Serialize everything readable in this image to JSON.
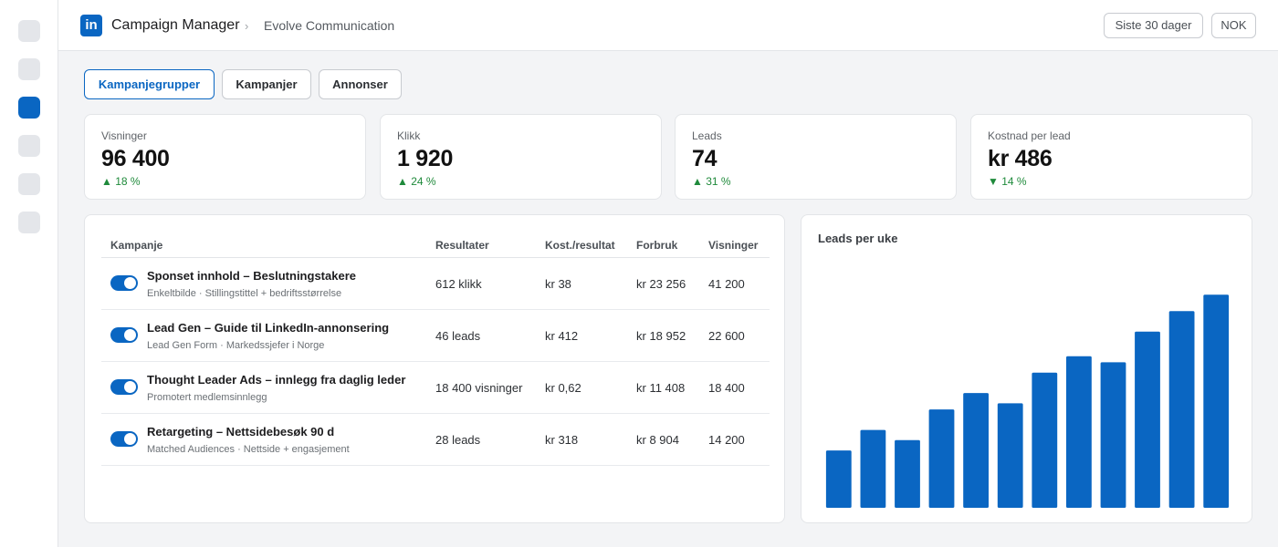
{
  "app": {
    "logo_text": "in",
    "title": "Campaign Manager",
    "separator": "›",
    "account": "Evolve Communication",
    "date_range": "Siste 30 dager",
    "currency": "NOK"
  },
  "rail": {
    "items": [
      "nav-item",
      "nav-item",
      "nav-item-active",
      "nav-item",
      "nav-item",
      "nav-item"
    ]
  },
  "tabs": [
    {
      "label": "Kampanjegrupper",
      "active": true
    },
    {
      "label": "Kampanjer",
      "active": false
    },
    {
      "label": "Annonser",
      "active": false
    }
  ],
  "kpis": [
    {
      "label": "Visninger",
      "value": "96 400",
      "delta": "▲ 18 %"
    },
    {
      "label": "Klikk",
      "value": "1 920",
      "delta": "▲ 24 %"
    },
    {
      "label": "Leads",
      "value": "74",
      "delta": "▲ 31 %"
    },
    {
      "label": "Kostnad per lead",
      "value": "kr 486",
      "delta": "▼ 14 %"
    }
  ],
  "table": {
    "headers": [
      "Kampanje",
      "Resultater",
      "Kost./resultat",
      "Forbruk",
      "Visninger"
    ],
    "rows": [
      {
        "name": "Sponset innhold – Beslutningstakere",
        "sub": "Enkeltbilde · Stillingstittel + bedriftsstørrelse",
        "results": "612 klikk",
        "cost": "kr 38",
        "spend": "kr 23 256",
        "impressions": "41 200",
        "enabled": true
      },
      {
        "name": "Lead Gen – Guide til LinkedIn-annonsering",
        "sub": "Lead Gen Form · Markedssjefer i Norge",
        "results": "46 leads",
        "cost": "kr 412",
        "spend": "kr 18 952",
        "impressions": "22 600",
        "enabled": true
      },
      {
        "name": "Thought Leader Ads – innlegg fra daglig leder",
        "sub": "Promotert medlemsinnlegg",
        "results": "18 400 visninger",
        "cost": "kr 0,62",
        "spend": "kr 11 408",
        "impressions": "18 400",
        "enabled": true
      },
      {
        "name": "Retargeting – Nettsidebesøk 90 d",
        "sub": "Matched Audiences · Nettside + engasjement",
        "results": "28 leads",
        "cost": "kr 318",
        "spend": "kr 8 904",
        "impressions": "14 200",
        "enabled": true
      }
    ]
  },
  "chart": {
    "title": "Leads per uke"
  },
  "chart_data": {
    "type": "bar",
    "title": "Leads per uke",
    "xlabel": "",
    "ylabel": "",
    "ylim": [
      0,
      10.5
    ],
    "grid": false,
    "values": [
      2.8,
      3.8,
      3.3,
      4.8,
      5.6,
      5.1,
      6.6,
      7.4,
      7.1,
      8.6,
      9.6,
      10.4
    ],
    "color": "#0a66c2"
  },
  "colors": {
    "accent": "#0a66c2",
    "positive": "#1f8a3b"
  }
}
